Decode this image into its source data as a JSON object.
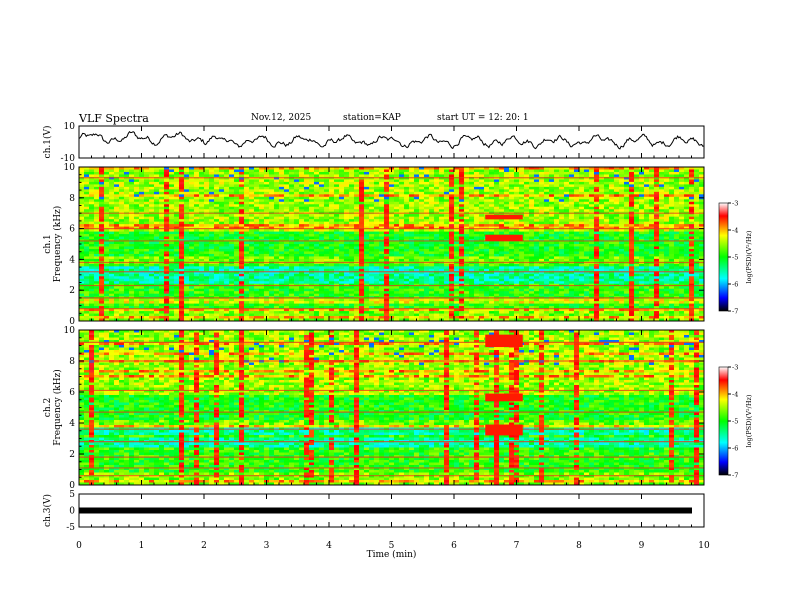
{
  "header": {
    "title": "VLF Spectra",
    "date": "Nov.12, 2025",
    "station": "station=KAP",
    "start": "start  UT  =   12: 20: 1"
  },
  "chart_data": [
    {
      "type": "line",
      "name": "ch1-waveform",
      "ylabel": "ch.1(V)",
      "ylim": [
        -10,
        10
      ],
      "yticks": [
        "10",
        "-10"
      ],
      "xlim": [
        0,
        10
      ]
    },
    {
      "type": "heatmap",
      "name": "ch1-spectrogram",
      "ylabel": "ch.1",
      "ylabel2": "Frequency  (kHz)",
      "ylim": [
        0,
        10
      ],
      "yticks": [
        "10",
        "8",
        "6",
        "4",
        "2",
        "0"
      ],
      "colorbar": {
        "label": "log(PSD)(V²/Hz)",
        "range": [
          -7,
          -3
        ],
        "ticks": [
          "-3",
          "-4",
          "-5",
          "-6",
          "-7"
        ]
      },
      "events": [
        {
          "t0": 6.5,
          "t1": 7.1,
          "f0": 5.2,
          "f1": 5.6
        },
        {
          "t0": 6.5,
          "t1": 7.1,
          "f0": 6.6,
          "f1": 6.9
        }
      ]
    },
    {
      "type": "heatmap",
      "name": "ch2-spectrogram",
      "ylabel": "ch.2",
      "ylabel2": "Frequency  (kHz)",
      "ylim": [
        0,
        10
      ],
      "yticks": [
        "10",
        "8",
        "6",
        "4",
        "2",
        "0"
      ],
      "colorbar": {
        "label": "log(PSD)(V²/Hz)",
        "range": [
          -7,
          -3
        ],
        "ticks": [
          "-3",
          "-4",
          "-5",
          "-6",
          "-7"
        ]
      },
      "events": [
        {
          "t0": 6.5,
          "t1": 7.1,
          "f0": 8.9,
          "f1": 9.7
        },
        {
          "t0": 6.5,
          "t1": 7.1,
          "f0": 5.4,
          "f1": 5.9
        },
        {
          "t0": 6.5,
          "t1": 7.1,
          "f0": 3.2,
          "f1": 3.9
        }
      ]
    },
    {
      "type": "line",
      "name": "ch3-waveform",
      "ylabel": "ch.3(V)",
      "ylim": [
        -5,
        5
      ],
      "yticks": [
        "5",
        "0",
        "-5"
      ],
      "level": 0,
      "xlim": [
        0,
        10
      ],
      "xlabel": "Time  (min)",
      "xticks": [
        "0",
        "1",
        "2",
        "3",
        "4",
        "5",
        "6",
        "7",
        "8",
        "9",
        "10"
      ]
    }
  ]
}
